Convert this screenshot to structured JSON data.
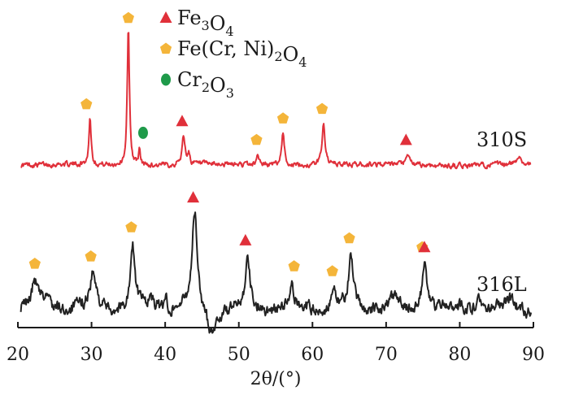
{
  "chart_data": {
    "type": "line",
    "xlabel": "2θ/(°)",
    "xlim": [
      20,
      90
    ],
    "x_ticks": [
      "20",
      "30",
      "40",
      "50",
      "60",
      "70",
      "80",
      "90"
    ],
    "grid": false,
    "legend": {
      "placement": "top-center",
      "entries": [
        {
          "symbol": "triangle",
          "color": "#e0303a",
          "label_parts": [
            [
              "Fe",
              ""
            ],
            [
              "3",
              "sub"
            ],
            [
              "O",
              ""
            ],
            [
              "4",
              "sub"
            ]
          ]
        },
        {
          "symbol": "pentagon",
          "color": "#f4b53a",
          "label_parts": [
            [
              "Fe(Cr, Ni)",
              ""
            ],
            [
              "2",
              "sub"
            ],
            [
              "O",
              ""
            ],
            [
              "4",
              "sub"
            ]
          ]
        },
        {
          "symbol": "circle",
          "color": "#1f9a4a",
          "label_parts": [
            [
              "Cr",
              ""
            ],
            [
              "2",
              "sub"
            ],
            [
              "O",
              ""
            ],
            [
              "3",
              "sub"
            ]
          ]
        }
      ]
    },
    "series": [
      {
        "name": "310S",
        "color": "#e0303a",
        "peaks": [
          {
            "x": 29.8,
            "h": 58,
            "w": 0.18
          },
          {
            "x": 35.0,
            "h": 168,
            "w": 0.18
          },
          {
            "x": 36.5,
            "h": 18,
            "w": 0.15
          },
          {
            "x": 42.5,
            "h": 35,
            "w": 0.25
          },
          {
            "x": 43.2,
            "h": 12,
            "w": 0.2
          },
          {
            "x": 52.6,
            "h": 14,
            "w": 0.2
          },
          {
            "x": 56.0,
            "h": 42,
            "w": 0.22
          },
          {
            "x": 61.5,
            "h": 52,
            "w": 0.25
          },
          {
            "x": 73.0,
            "h": 11,
            "w": 0.3
          },
          {
            "x": 88.0,
            "h": 12,
            "w": 0.3
          }
        ],
        "markers": [
          {
            "x": 29.3,
            "symbol": "pentagon"
          },
          {
            "x": 35.0,
            "symbol": "pentagon"
          },
          {
            "x": 37.0,
            "symbol": "circle"
          },
          {
            "x": 42.3,
            "symbol": "triangle"
          },
          {
            "x": 52.4,
            "symbol": "pentagon"
          },
          {
            "x": 56.0,
            "symbol": "pentagon"
          },
          {
            "x": 61.3,
            "symbol": "pentagon"
          },
          {
            "x": 72.7,
            "symbol": "triangle"
          }
        ]
      },
      {
        "name": "316L",
        "color": "#222222",
        "peaks": [
          {
            "x": 22.3,
            "h": 28,
            "w": 0.5
          },
          {
            "x": 24.0,
            "h": 12,
            "w": 0.4
          },
          {
            "x": 30.2,
            "h": 38,
            "w": 0.45
          },
          {
            "x": 35.6,
            "h": 72,
            "w": 0.35
          },
          {
            "x": 38.0,
            "h": 10,
            "w": 0.3
          },
          {
            "x": 40.0,
            "h": 18,
            "w": 0.25
          },
          {
            "x": 44.0,
            "h": 118,
            "w": 0.42
          },
          {
            "x": 51.2,
            "h": 62,
            "w": 0.35
          },
          {
            "x": 57.2,
            "h": 20,
            "w": 0.3
          },
          {
            "x": 62.9,
            "h": 18,
            "w": 0.3
          },
          {
            "x": 65.2,
            "h": 60,
            "w": 0.35
          },
          {
            "x": 71.0,
            "h": 8,
            "w": 0.5
          },
          {
            "x": 75.2,
            "h": 62,
            "w": 0.35
          },
          {
            "x": 82.5,
            "h": 16,
            "w": 0.4
          },
          {
            "x": 87.0,
            "h": 10,
            "w": 0.4
          }
        ],
        "markers": [
          {
            "x": 22.3,
            "symbol": "pentagon"
          },
          {
            "x": 29.9,
            "symbol": "pentagon"
          },
          {
            "x": 35.4,
            "symbol": "pentagon"
          },
          {
            "x": 43.8,
            "symbol": "triangle"
          },
          {
            "x": 50.9,
            "symbol": "triangle"
          },
          {
            "x": 57.5,
            "symbol": "pentagon"
          },
          {
            "x": 62.7,
            "symbol": "pentagon"
          },
          {
            "x": 65.0,
            "symbol": "pentagon"
          },
          {
            "x": 74.9,
            "symbol": "pentagon"
          },
          {
            "x": 75.2,
            "symbol": "triangle"
          }
        ]
      }
    ]
  }
}
